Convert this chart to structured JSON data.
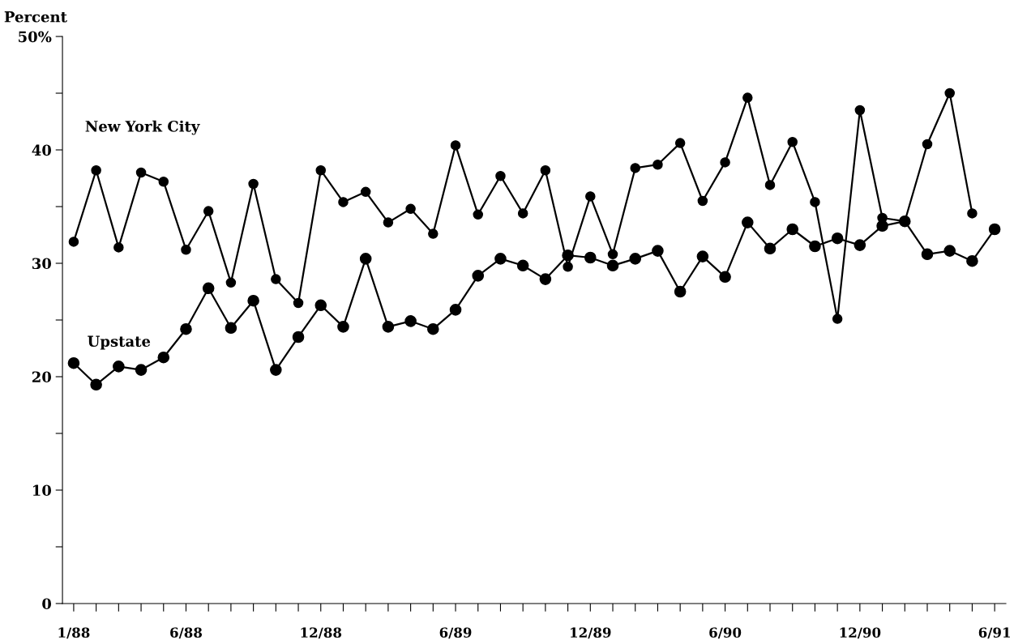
{
  "chart_data": {
    "type": "line",
    "ylabel": "Percent",
    "categories": [
      "1/88",
      null,
      null,
      null,
      null,
      "6/88",
      null,
      null,
      null,
      null,
      null,
      "12/88",
      null,
      null,
      null,
      null,
      null,
      "6/89",
      null,
      null,
      null,
      null,
      null,
      "12/89",
      null,
      null,
      null,
      null,
      null,
      "6/90",
      null,
      null,
      null,
      null,
      null,
      "12/90",
      null,
      null,
      null,
      null,
      null,
      "6/91"
    ],
    "series": [
      {
        "name": "New York City",
        "color": "#000000",
        "values": [
          31.9,
          38.2,
          31.4,
          38.0,
          37.2,
          31.2,
          34.6,
          28.3,
          37.0,
          28.6,
          26.5,
          38.2,
          35.4,
          36.3,
          33.6,
          34.8,
          32.6,
          40.4,
          34.3,
          37.7,
          34.4,
          38.2,
          29.7,
          35.9,
          30.8,
          38.4,
          38.7,
          40.6,
          35.5,
          38.9,
          44.6,
          36.9,
          40.7,
          35.4,
          25.1,
          43.5,
          34.0,
          33.7,
          40.5,
          45.0,
          34.4,
          null
        ]
      },
      {
        "name": "Upstate",
        "color": "#000000",
        "values": [
          21.2,
          19.3,
          20.9,
          20.6,
          21.7,
          24.2,
          27.8,
          24.3,
          26.7,
          20.6,
          23.5,
          26.3,
          24.4,
          30.4,
          24.4,
          24.9,
          24.2,
          25.9,
          28.9,
          30.4,
          29.8,
          28.6,
          30.7,
          30.5,
          29.8,
          30.4,
          31.1,
          27.5,
          30.6,
          28.8,
          33.6,
          31.3,
          33.0,
          31.5,
          32.2,
          31.6,
          33.3,
          33.7,
          30.8,
          31.1,
          30.2,
          33.0
        ]
      }
    ],
    "ylim": [
      0,
      50
    ],
    "yticks": [
      0,
      {
        "value": 5,
        "label": null
      },
      10,
      {
        "value": 15,
        "label": null
      },
      20,
      {
        "value": 25,
        "label": null
      },
      30,
      {
        "value": 35,
        "label": null
      },
      40,
      {
        "value": 45,
        "label": null
      },
      {
        "value": 50,
        "label": "50%"
      }
    ],
    "marker": "circle",
    "line_style": "solid",
    "grid": false,
    "legend": false
  }
}
